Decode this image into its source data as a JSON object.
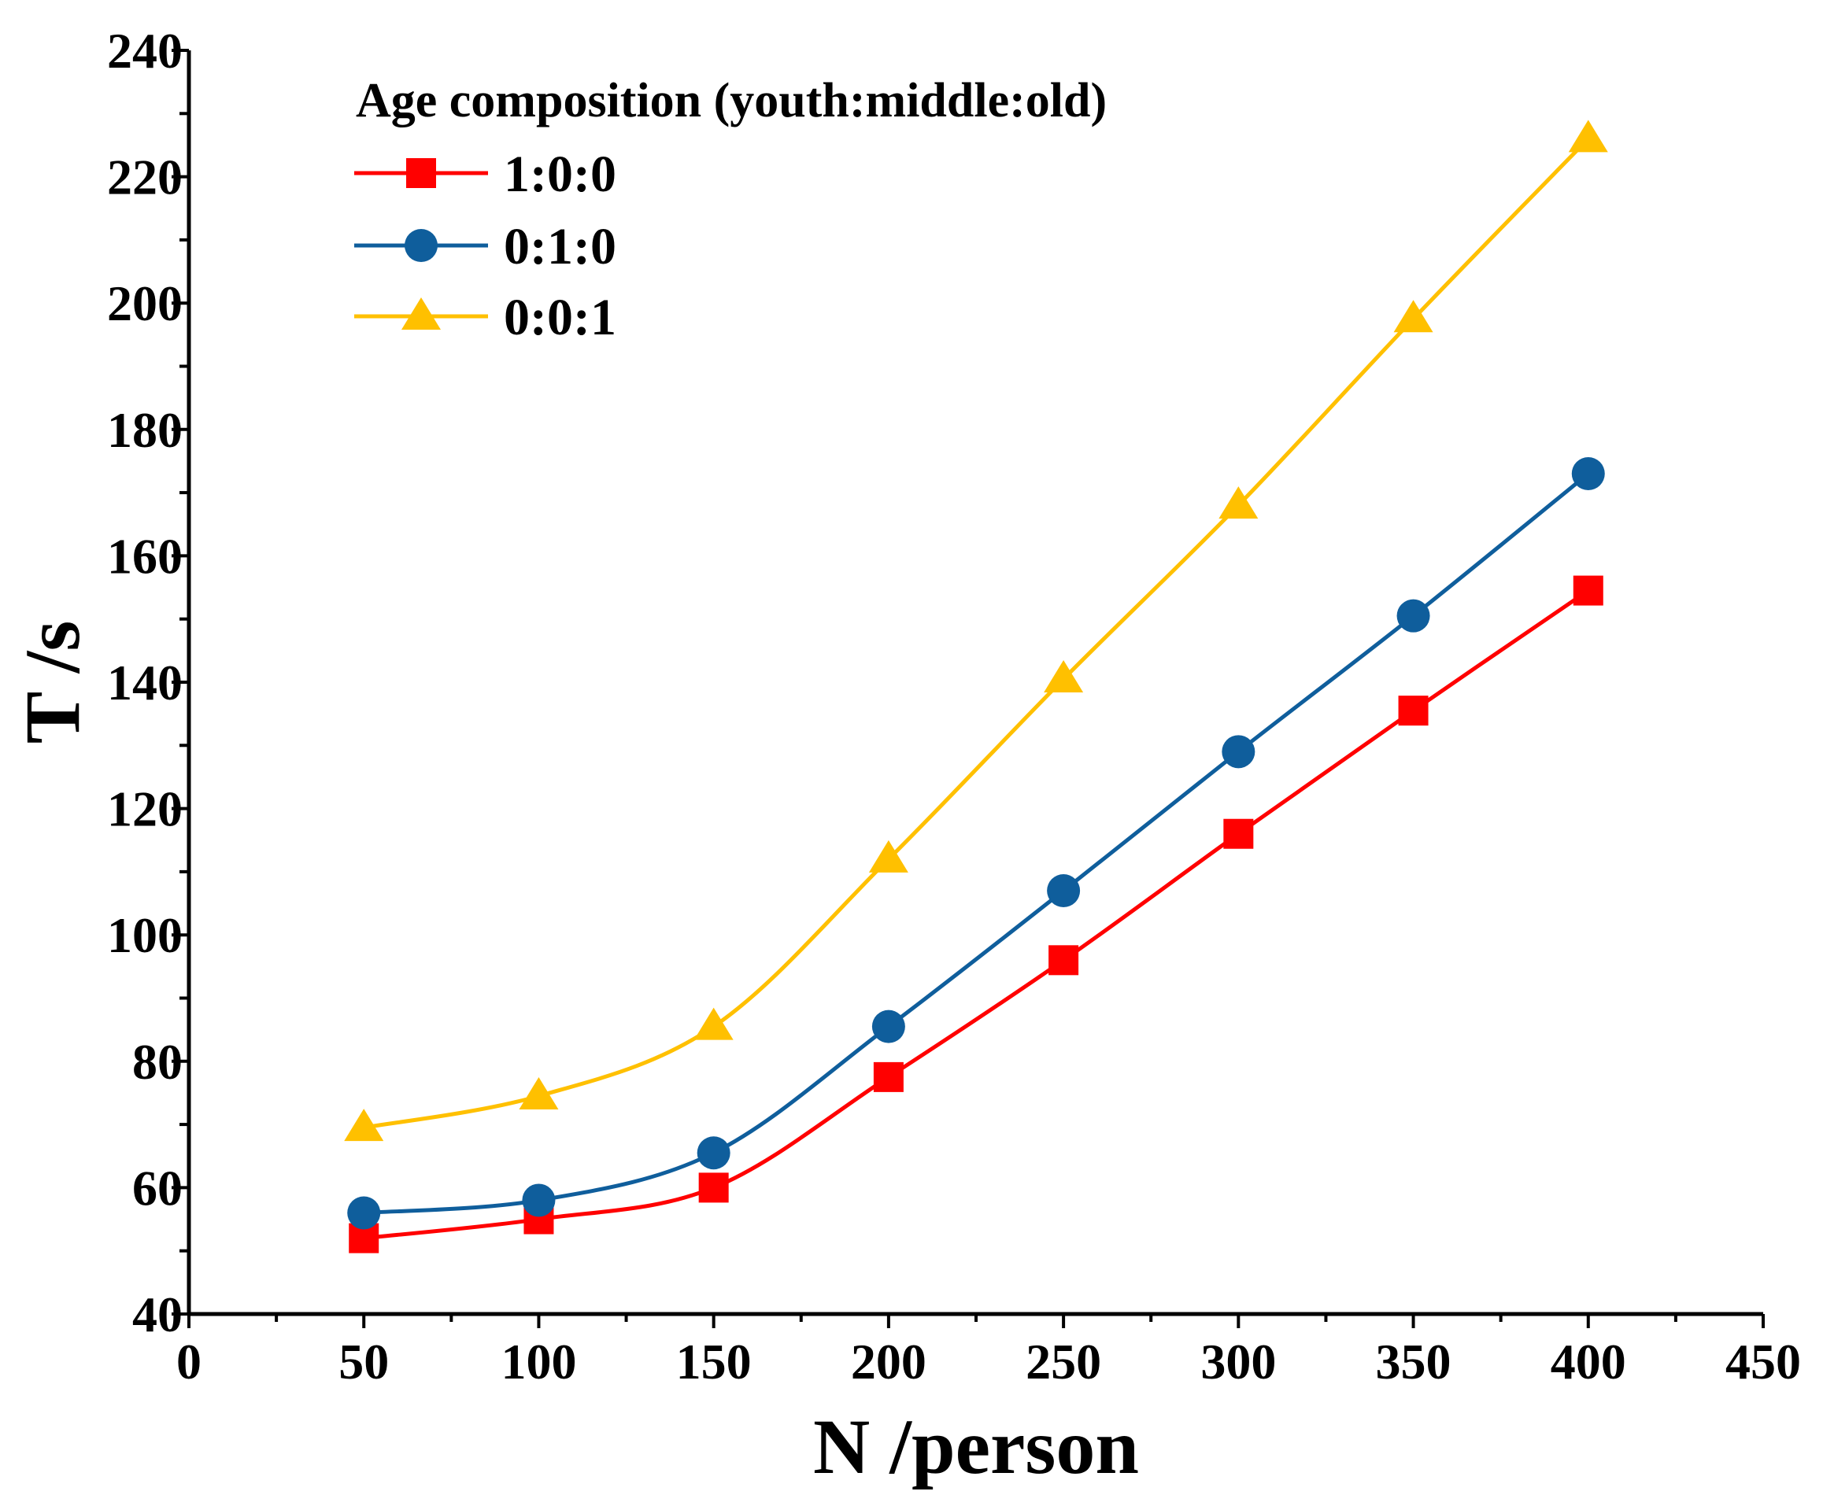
{
  "chart_data": {
    "type": "line",
    "title": "",
    "xlabel": "N /person",
    "ylabel": "T /s",
    "xlim": [
      0,
      450
    ],
    "ylim": [
      40,
      240
    ],
    "xticks": [
      0,
      50,
      100,
      150,
      200,
      250,
      300,
      350,
      400,
      450
    ],
    "yticks": [
      40,
      60,
      80,
      100,
      120,
      140,
      160,
      180,
      200,
      220,
      240
    ],
    "grid": false,
    "legend": {
      "title": "Age composition (youth:middle:old)",
      "placement": "top-left"
    },
    "x": [
      50,
      100,
      150,
      200,
      250,
      300,
      350,
      400
    ],
    "series": [
      {
        "name": "1:0:0",
        "color": "#ff0000",
        "marker": "square",
        "values": [
          52,
          55,
          60,
          77.5,
          96,
          116,
          135.5,
          154.5
        ]
      },
      {
        "name": "0:1:0",
        "color": "#0f5e9c",
        "marker": "circle",
        "values": [
          56,
          58,
          65.5,
          85.5,
          107,
          129,
          150.5,
          173
        ]
      },
      {
        "name": "0:0:1",
        "color": "#ffc000",
        "marker": "triangle",
        "values": [
          69.5,
          74.5,
          85.5,
          112,
          140.5,
          168,
          197.5,
          226
        ]
      }
    ]
  }
}
